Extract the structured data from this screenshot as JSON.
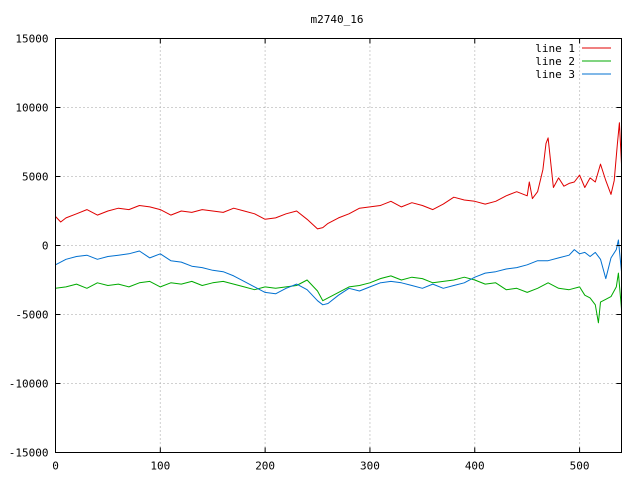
{
  "chart_data": {
    "type": "line",
    "title": "m2740_16",
    "xlabel": "",
    "ylabel": "",
    "xlim": [
      0,
      540
    ],
    "ylim": [
      -15000,
      15000
    ],
    "x_ticks": [
      0,
      100,
      200,
      300,
      400,
      500
    ],
    "y_ticks": [
      -15000,
      -10000,
      -5000,
      0,
      5000,
      10000,
      15000
    ],
    "grid": true,
    "legend_position": "top-right",
    "series": [
      {
        "name": "line 1",
        "color": "#e00000",
        "x": [
          0,
          5,
          10,
          20,
          30,
          40,
          50,
          60,
          70,
          80,
          90,
          100,
          110,
          120,
          130,
          140,
          150,
          160,
          170,
          180,
          190,
          200,
          210,
          220,
          230,
          240,
          250,
          255,
          260,
          270,
          280,
          290,
          300,
          310,
          320,
          330,
          340,
          350,
          360,
          370,
          380,
          390,
          400,
          410,
          420,
          430,
          440,
          450,
          452,
          455,
          460,
          465,
          468,
          470,
          475,
          480,
          485,
          490,
          495,
          500,
          505,
          510,
          515,
          520,
          525,
          530,
          533,
          536,
          538,
          540
        ],
        "y": [
          2100,
          1700,
          2000,
          2300,
          2600,
          2200,
          2500,
          2700,
          2600,
          2900,
          2800,
          2600,
          2200,
          2500,
          2400,
          2600,
          2500,
          2400,
          2700,
          2500,
          2300,
          1900,
          2000,
          2300,
          2500,
          1900,
          1200,
          1300,
          1600,
          2000,
          2300,
          2700,
          2800,
          2900,
          3200,
          2800,
          3100,
          2900,
          2600,
          3000,
          3500,
          3300,
          3200,
          3000,
          3200,
          3600,
          3900,
          3600,
          4600,
          3400,
          3900,
          5500,
          7400,
          7800,
          4200,
          4900,
          4300,
          4500,
          4600,
          5100,
          4200,
          4900,
          4600,
          5900,
          4700,
          3700,
          4700,
          7300,
          8900,
          5900
        ]
      },
      {
        "name": "line 2",
        "color": "#00aa00",
        "x": [
          0,
          10,
          20,
          30,
          40,
          50,
          60,
          70,
          80,
          90,
          100,
          110,
          120,
          130,
          140,
          150,
          160,
          170,
          180,
          190,
          200,
          210,
          220,
          230,
          240,
          250,
          255,
          260,
          270,
          280,
          290,
          300,
          310,
          320,
          330,
          340,
          350,
          360,
          370,
          380,
          390,
          400,
          410,
          420,
          430,
          440,
          450,
          460,
          470,
          480,
          490,
          500,
          505,
          510,
          515,
          518,
          520,
          525,
          530,
          535,
          537,
          540
        ],
        "y": [
          -3100,
          -3000,
          -2800,
          -3100,
          -2700,
          -2900,
          -2800,
          -3000,
          -2700,
          -2600,
          -3000,
          -2700,
          -2800,
          -2600,
          -2900,
          -2700,
          -2600,
          -2800,
          -3000,
          -3200,
          -3000,
          -3100,
          -3000,
          -2900,
          -2500,
          -3300,
          -4000,
          -3800,
          -3400,
          -3000,
          -2900,
          -2700,
          -2400,
          -2200,
          -2500,
          -2300,
          -2400,
          -2700,
          -2600,
          -2500,
          -2300,
          -2500,
          -2800,
          -2700,
          -3200,
          -3100,
          -3400,
          -3100,
          -2700,
          -3100,
          -3200,
          -3000,
          -3600,
          -3800,
          -4300,
          -5600,
          -4100,
          -3900,
          -3700,
          -3000,
          -2000,
          -4600
        ]
      },
      {
        "name": "line 3",
        "color": "#0070d0",
        "x": [
          0,
          10,
          20,
          30,
          40,
          50,
          60,
          70,
          80,
          90,
          100,
          110,
          120,
          130,
          140,
          150,
          160,
          170,
          180,
          190,
          200,
          210,
          220,
          230,
          240,
          250,
          255,
          260,
          270,
          280,
          290,
          300,
          310,
          320,
          330,
          340,
          350,
          360,
          370,
          380,
          390,
          400,
          410,
          420,
          430,
          440,
          450,
          460,
          470,
          480,
          490,
          495,
          500,
          505,
          510,
          515,
          520,
          525,
          530,
          535,
          537,
          540
        ],
        "y": [
          -1400,
          -1000,
          -800,
          -700,
          -1000,
          -800,
          -700,
          -600,
          -400,
          -900,
          -600,
          -1100,
          -1200,
          -1500,
          -1600,
          -1800,
          -1900,
          -2200,
          -2600,
          -3000,
          -3400,
          -3500,
          -3100,
          -2800,
          -3200,
          -4000,
          -4300,
          -4200,
          -3600,
          -3100,
          -3300,
          -3000,
          -2700,
          -2600,
          -2700,
          -2900,
          -3100,
          -2800,
          -3100,
          -2900,
          -2700,
          -2300,
          -2000,
          -1900,
          -1700,
          -1600,
          -1400,
          -1100,
          -1100,
          -900,
          -700,
          -300,
          -600,
          -500,
          -800,
          -500,
          -1000,
          -2400,
          -900,
          -300,
          400,
          -1900
        ]
      }
    ]
  }
}
